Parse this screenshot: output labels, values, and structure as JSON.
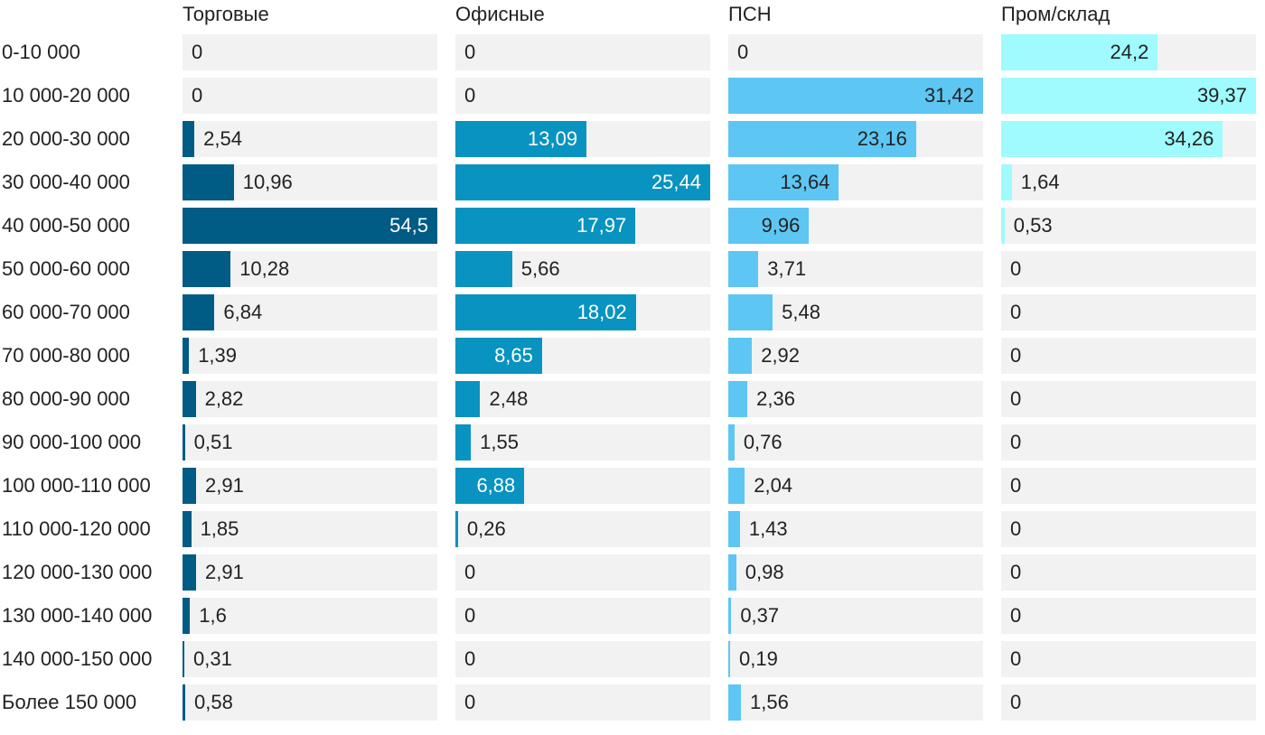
{
  "chart_data": {
    "type": "bar",
    "orientation": "horizontal",
    "layout": "small-multiples",
    "categories": [
      "0-10 000",
      "10 000-20 000",
      "20 000-30 000",
      "30 000-40 000",
      "40 000-50 000",
      "50 000-60 000",
      "60 000-70 000",
      "70 000-80 000",
      "80 000-90 000",
      "90 000-100 000",
      "100 000-110 000",
      "110 000-120 000",
      "120 000-130 000",
      "130 000-140 000",
      "140 000-150 000",
      "Более 150 000"
    ],
    "series": [
      {
        "name": "Торговые",
        "color": "#005b85",
        "label_inside_color": "#ffffff",
        "labels": [
          "0",
          "0",
          "2,54",
          "10,96",
          "54,5",
          "10,28",
          "6,84",
          "1,39",
          "2,82",
          "0,51",
          "2,91",
          "1,85",
          "2,91",
          "1,6",
          "0,31",
          "0,58"
        ],
        "values": [
          0,
          0,
          2.54,
          10.96,
          54.5,
          10.28,
          6.84,
          1.39,
          2.82,
          0.51,
          2.91,
          1.85,
          2.91,
          1.6,
          0.31,
          0.58
        ],
        "max": 54.5
      },
      {
        "name": "Офисные",
        "color": "#0893c0",
        "label_inside_color": "#ffffff",
        "labels": [
          "0",
          "0",
          "13,09",
          "25,44",
          "17,97",
          "5,66",
          "18,02",
          "8,65",
          "2,48",
          "1,55",
          "6,88",
          "0,26",
          "0",
          "0",
          "0",
          "0"
        ],
        "values": [
          0,
          0,
          13.09,
          25.44,
          17.97,
          5.66,
          18.02,
          8.65,
          2.48,
          1.55,
          6.88,
          0.26,
          0,
          0,
          0,
          0
        ],
        "max": 25.44
      },
      {
        "name": "ПСН",
        "color": "#5ec6f2",
        "label_inside_color": "#222222",
        "labels": [
          "0",
          "31,42",
          "23,16",
          "13,64",
          "9,96",
          "3,71",
          "5,48",
          "2,92",
          "2,36",
          "0,76",
          "2,04",
          "1,43",
          "0,98",
          "0,37",
          "0,19",
          "1,56"
        ],
        "values": [
          0,
          31.42,
          23.16,
          13.64,
          9.96,
          3.71,
          5.48,
          2.92,
          2.36,
          0.76,
          2.04,
          1.43,
          0.98,
          0.37,
          0.19,
          1.56
        ],
        "max": 31.42
      },
      {
        "name": "Пром/склад",
        "color": "#9ffbfd",
        "label_inside_color": "#222222",
        "labels": [
          "24,2",
          "39,37",
          "34,26",
          "1,64",
          "0,53",
          "0",
          "0",
          "0",
          "0",
          "0",
          "0",
          "0",
          "0",
          "0",
          "0",
          "0"
        ],
        "values": [
          24.2,
          39.37,
          34.26,
          1.64,
          0.53,
          0,
          0,
          0,
          0,
          0,
          0,
          0,
          0,
          0,
          0,
          0
        ],
        "max": 39.37
      }
    ],
    "title": "",
    "xlabel": "",
    "ylabel": "",
    "grid": false,
    "legend": "none"
  }
}
